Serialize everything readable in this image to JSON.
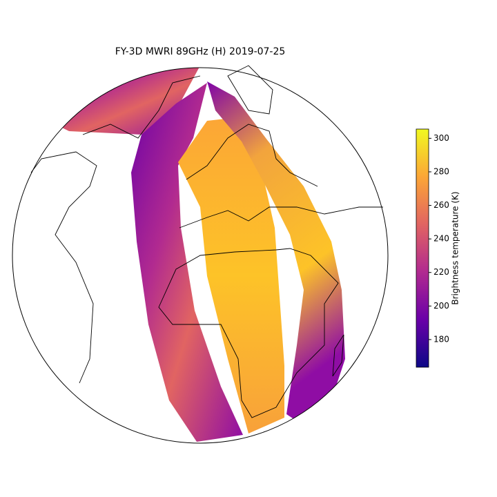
{
  "title": "FY-3D MWRI 89GHz (H) 2019-07-25",
  "colorbar": {
    "label": "Brightness temperature (K)",
    "lim": [
      163.5,
      305.5
    ],
    "ticks": [
      180,
      200,
      220,
      240,
      260,
      280,
      300
    ],
    "colors": [
      "#0d0887",
      "#6a00a8",
      "#b12a90",
      "#e16462",
      "#fca636",
      "#f0f921"
    ]
  }
}
